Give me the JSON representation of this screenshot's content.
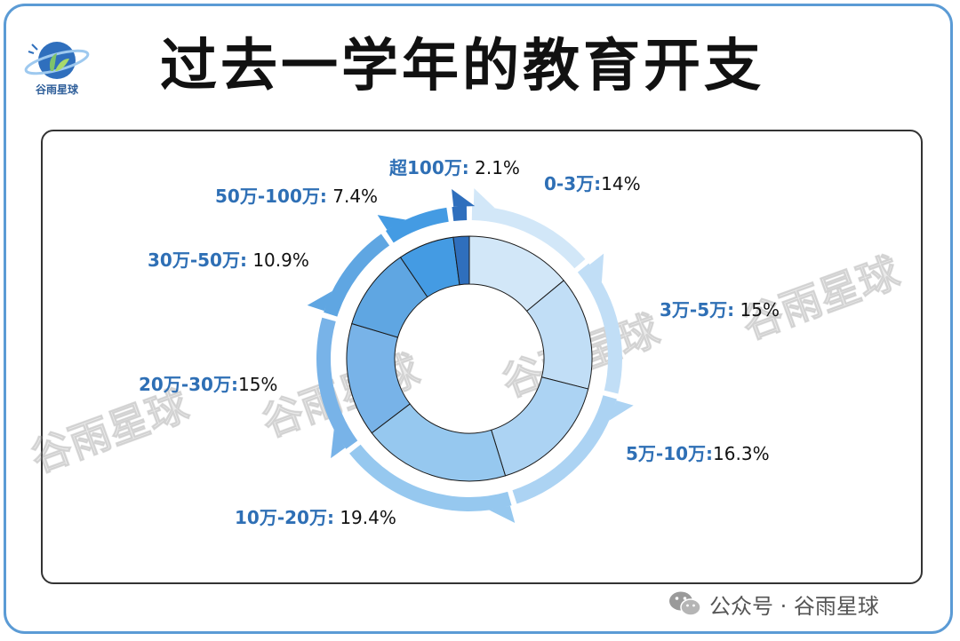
{
  "header": {
    "title": "过去一学年的教育开支",
    "logo_text": "谷雨星球"
  },
  "watermark": "谷雨星球",
  "footer": {
    "text": "公众号 · 谷雨星球"
  },
  "colors": {
    "frame": "#5b9bd5",
    "label_category": "#2e6fb5",
    "label_value": "#111111"
  },
  "chart_data": {
    "type": "pie",
    "style": "donut",
    "title": "过去一学年的教育开支",
    "categories": [
      "0-3万",
      "3万-5万",
      "5万-10万",
      "10万-20万",
      "20万-30万",
      "30万-50万",
      "50万-100万",
      "超100万"
    ],
    "values": [
      14,
      15,
      16.3,
      19.4,
      15,
      10.9,
      7.4,
      2.1
    ],
    "value_labels": [
      "14%",
      "15%",
      "16.3%",
      "19.4%",
      "15%",
      "10.9%",
      "7.4%",
      "2.1%"
    ],
    "colors": [
      "#d2e7f8",
      "#c1def6",
      "#acd3f3",
      "#96c8ef",
      "#78b3e8",
      "#5fa6e2",
      "#449be3",
      "#2f6fbd"
    ],
    "legend": "labels-around"
  }
}
